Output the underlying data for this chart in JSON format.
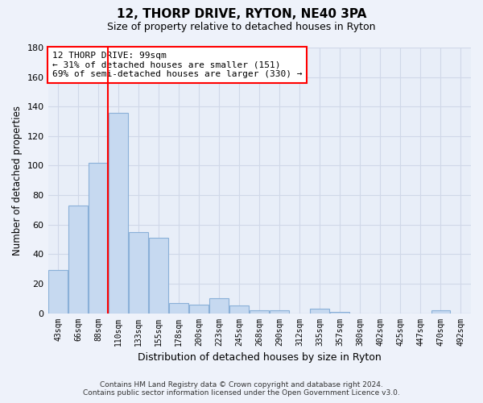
{
  "title": "12, THORP DRIVE, RYTON, NE40 3PA",
  "subtitle": "Size of property relative to detached houses in Ryton",
  "xlabel": "Distribution of detached houses by size in Ryton",
  "ylabel": "Number of detached properties",
  "bar_labels": [
    "43sqm",
    "66sqm",
    "88sqm",
    "110sqm",
    "133sqm",
    "155sqm",
    "178sqm",
    "200sqm",
    "223sqm",
    "245sqm",
    "268sqm",
    "290sqm",
    "312sqm",
    "335sqm",
    "357sqm",
    "380sqm",
    "402sqm",
    "425sqm",
    "447sqm",
    "470sqm",
    "492sqm"
  ],
  "bar_values": [
    29,
    73,
    102,
    136,
    55,
    51,
    7,
    6,
    10,
    5,
    2,
    2,
    0,
    3,
    1,
    0,
    0,
    0,
    0,
    2,
    0
  ],
  "bar_color": "#c6d9f0",
  "bar_edge_color": "#8ab0d8",
  "ylim": [
    0,
    180
  ],
  "yticks": [
    0,
    20,
    40,
    60,
    80,
    100,
    120,
    140,
    160,
    180
  ],
  "annotation_title": "12 THORP DRIVE: 99sqm",
  "annotation_line1": "← 31% of detached houses are smaller (151)",
  "annotation_line2": "69% of semi-detached houses are larger (330) →",
  "footer_line1": "Contains HM Land Registry data © Crown copyright and database right 2024.",
  "footer_line2": "Contains public sector information licensed under the Open Government Licence v3.0.",
  "bg_color": "#eef2fa",
  "grid_color": "#d0d8e8",
  "plot_bg_color": "#e8eef8"
}
